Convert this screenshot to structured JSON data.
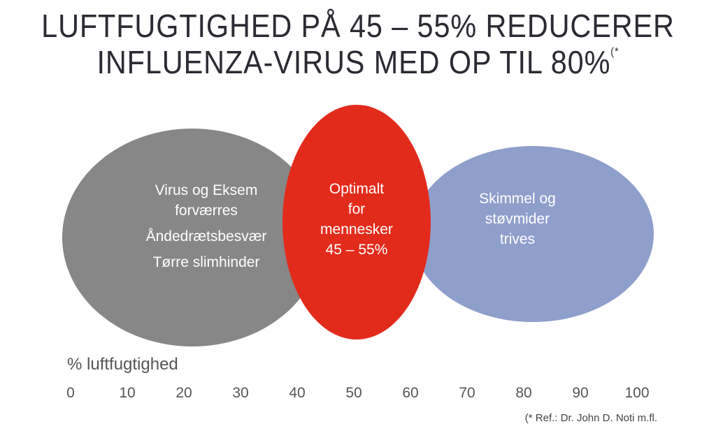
{
  "title": {
    "line1": "LUFTFUGTIGHED PÅ 45 – 55% REDUCERER",
    "line2": "INFLUENZA-VIRUS MED OP TIL 80%",
    "footnote_mark": "(*"
  },
  "zones": {
    "low": {
      "lines": [
        "Virus og Eksem",
        "forværres",
        "Åndedrætsbesvær",
        "Tørre slimhinder"
      ],
      "color": "#878788"
    },
    "optimal": {
      "lines": [
        "Optimalt",
        "for",
        "mennesker",
        "45 – 55%"
      ],
      "color": "#e32b1c"
    },
    "high": {
      "lines": [
        "Skimmel og",
        "støvmider",
        "trives"
      ],
      "color": "#8f9fcc"
    }
  },
  "axis": {
    "title": "% luftfugtighed",
    "ticks": [
      "0",
      "10",
      "20",
      "30",
      "40",
      "50",
      "60",
      "70",
      "80",
      "90",
      "100"
    ]
  },
  "reference": "(* Ref.: Dr. John D. Noti m.fl."
}
